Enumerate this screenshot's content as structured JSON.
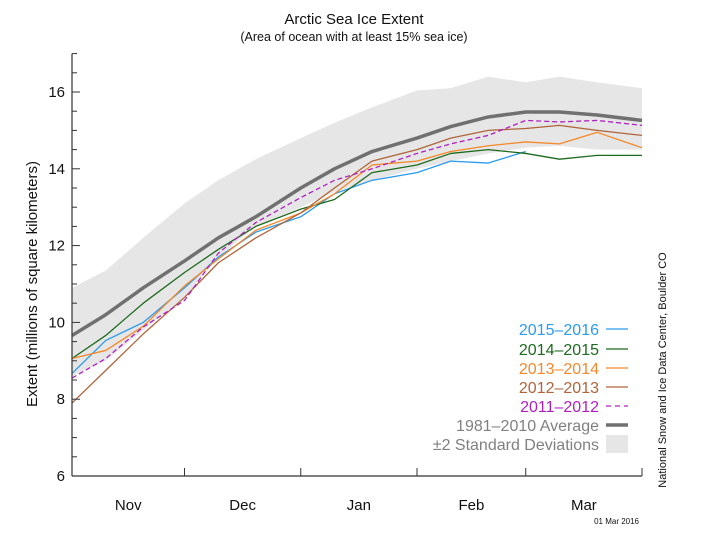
{
  "chart_data": {
    "type": "line",
    "title": "Arctic Sea Ice Extent",
    "subtitle": "(Area of ocean with at least 15% sea ice)",
    "ylabel": "Extent (millions of square kilometers)",
    "xlabel": "",
    "ylim": [
      6,
      17
    ],
    "yticks": [
      "6",
      "8",
      "10",
      "12",
      "14",
      "16"
    ],
    "xlim": [
      "Nov 1",
      "Apr 1"
    ],
    "month_labels": [
      "Nov",
      "Dec",
      "Jan",
      "Feb",
      "Mar"
    ],
    "x": [
      "Nov 1",
      "Nov 10",
      "Nov 20",
      "Dec 1",
      "Dec 10",
      "Dec 20",
      "Jan 1",
      "Jan 10",
      "Jan 20",
      "Feb 1",
      "Feb 10",
      "Feb 20",
      "Mar 1",
      "Mar 10",
      "Mar 20",
      "Apr 1"
    ],
    "band": {
      "name": "±2 Standard Deviations",
      "color": "#e6e6e6",
      "upper": [
        10.9,
        11.35,
        12.2,
        13.1,
        13.7,
        14.25,
        14.8,
        15.2,
        15.6,
        16.04,
        16.1,
        16.4,
        16.25,
        16.4,
        16.25,
        16.1
      ],
      "lower": [
        8.6,
        9.0,
        9.8,
        10.65,
        11.7,
        12.5,
        13.0,
        13.4,
        13.7,
        14.0,
        14.2,
        14.4,
        14.55,
        14.6,
        14.5,
        14.5
      ]
    },
    "series": [
      {
        "name": "1981–2010 Average",
        "color": "#707070",
        "style": "thick",
        "values": [
          9.66,
          10.2,
          10.9,
          11.6,
          12.2,
          12.75,
          13.5,
          14.0,
          14.45,
          14.8,
          15.1,
          15.35,
          15.48,
          15.48,
          15.4,
          15.26
        ]
      },
      {
        "name": "2015–2016",
        "color": "#2b9bef",
        "style": "solid",
        "values": [
          8.67,
          9.53,
          10.0,
          10.9,
          11.7,
          12.35,
          12.75,
          13.35,
          13.7,
          13.9,
          14.2,
          14.15,
          14.45,
          null,
          null,
          null
        ]
      },
      {
        "name": "2014–2015",
        "color": "#1e6a1e",
        "style": "solid",
        "values": [
          9.06,
          9.66,
          10.5,
          11.3,
          11.9,
          12.5,
          12.95,
          13.2,
          13.9,
          14.1,
          14.4,
          14.5,
          14.4,
          14.25,
          14.35,
          14.35
        ]
      },
      {
        "name": "2013–2014",
        "color": "#f5882a",
        "style": "solid",
        "values": [
          9.06,
          9.27,
          9.9,
          10.95,
          11.65,
          12.4,
          12.85,
          13.35,
          14.1,
          14.2,
          14.45,
          14.6,
          14.7,
          14.65,
          14.95,
          14.55
        ]
      },
      {
        "name": "2012–2013",
        "color": "#b0643a",
        "style": "solid",
        "values": [
          7.9,
          8.75,
          9.7,
          10.65,
          11.55,
          12.2,
          12.85,
          13.5,
          14.2,
          14.5,
          14.8,
          15.0,
          15.05,
          15.13,
          15.0,
          14.87
        ]
      },
      {
        "name": "2011–2012",
        "color": "#b020c0",
        "style": "dashed",
        "values": [
          8.55,
          9.06,
          9.88,
          10.57,
          11.8,
          12.6,
          13.25,
          13.7,
          14.0,
          14.4,
          14.65,
          14.87,
          15.26,
          15.22,
          15.26,
          15.13
        ]
      }
    ],
    "legend": [
      "2015–2016",
      "2014–2015",
      "2013–2014",
      "2012–2013",
      "2011–2012",
      "1981–2010 Average",
      "±2 Standard Deviations"
    ],
    "legend_placement": "bottom-right",
    "grid": false
  },
  "credit": "National Snow and Ice Data Center, Boulder CO",
  "date_stamp": "01 Mar 2016"
}
